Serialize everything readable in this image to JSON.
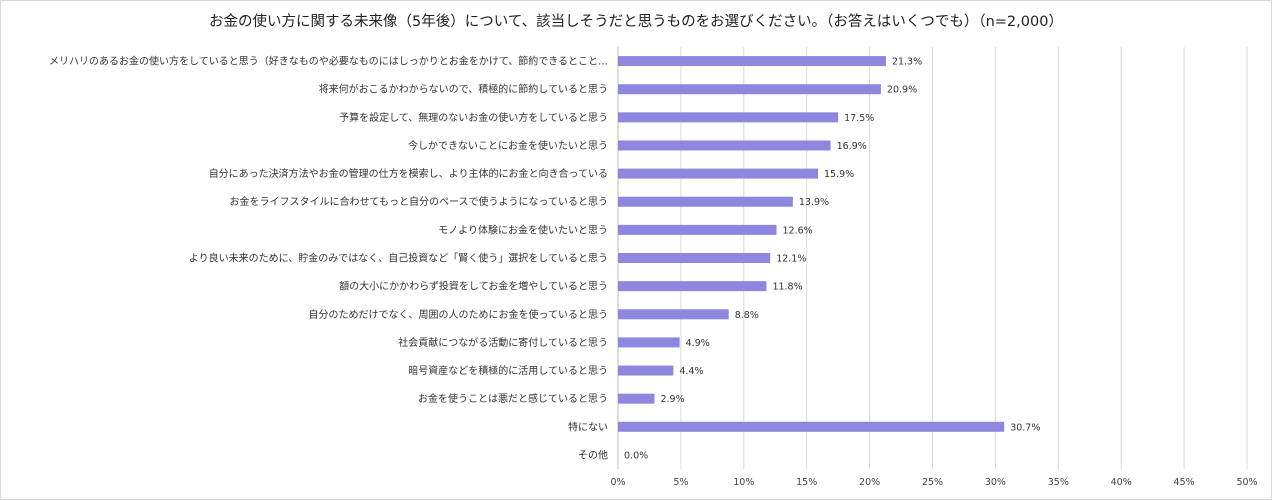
{
  "chart_data": {
    "type": "bar",
    "orientation": "horizontal",
    "title": "お金の使い方に関する未来像（5年後）について、該当しそうだと思うものをお選びください。（お答えはいくつでも）（n=2,000）",
    "categories": [
      "メリハリのあるお金の使い方をしていると思う（好きなものや必要なものにはしっかりとお金をかけて、節約できるとこと…",
      "将来何がおこるかわからないので、積極的に節約していると思う",
      "予算を設定して、無理のないお金の使い方をしていると思う",
      "今しかできないことにお金を使いたいと思う",
      "自分にあった決済方法やお金の管理の仕方を模索し、より主体的にお金と向き合っている",
      "お金をライフスタイルに合わせてもっと自分のペースで使うようになっていると思う",
      "モノより体験にお金を使いたいと思う",
      "より良い未来のために、貯金のみではなく、自己投資など「賢く使う」選択をしていると思う",
      "額の大小にかかわらず投資をしてお金を増やしていると思う",
      "自分のためだけでなく、周囲の人のためにお金を使っていると思う",
      "社会貢献につながる活動に寄付していると思う",
      "暗号資産などを積極的に活用していると思う",
      "お金を使うことは悪だと感じていると思う",
      "特にない",
      "その他"
    ],
    "values": [
      21.3,
      20.9,
      17.5,
      16.9,
      15.9,
      13.9,
      12.6,
      12.1,
      11.8,
      8.8,
      4.9,
      4.4,
      2.9,
      30.7,
      0.0
    ],
    "value_labels": [
      "21.3%",
      "20.9%",
      "17.5%",
      "16.9%",
      "15.9%",
      "13.9%",
      "12.6%",
      "12.1%",
      "11.8%",
      "8.8%",
      "4.9%",
      "4.4%",
      "2.9%",
      "30.7%",
      "0.0%"
    ],
    "xlim": [
      0,
      50
    ],
    "ticks": [
      "0%",
      "5%",
      "10%",
      "15%",
      "20%",
      "25%",
      "30%",
      "35%",
      "40%",
      "45%",
      "50%"
    ],
    "grid": true,
    "colors": {
      "bar": "#8e87e0",
      "grid": "#d9d9d9",
      "axis": "#bfbfbf"
    }
  }
}
